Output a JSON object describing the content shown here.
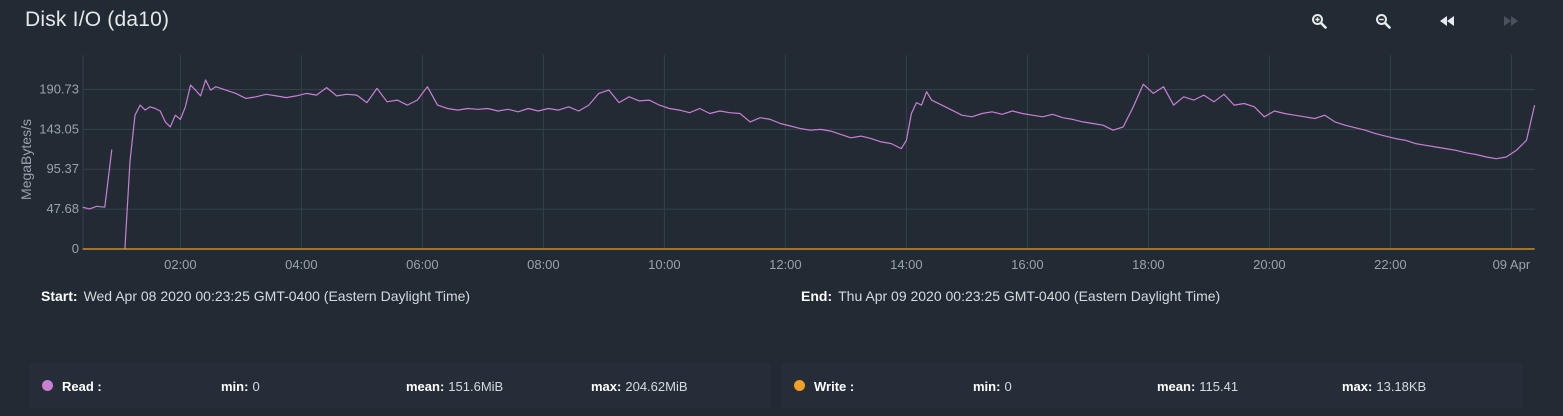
{
  "title": "Disk I/O (da10)",
  "toolbar": {
    "icons": [
      "zoom-in-icon",
      "zoom-out-icon",
      "rewind-icon",
      "fast-forward-icon"
    ]
  },
  "range": {
    "start_label": "Start:",
    "start_value": "Wed Apr 08 2020 00:23:25 GMT-0400 (Eastern Daylight Time)",
    "end_label": "End:",
    "end_value": "Thu Apr 09 2020 00:23:25 GMT-0400 (Eastern Daylight Time)"
  },
  "legend": {
    "read": {
      "label": "Read :",
      "min_label": "min:",
      "min": "0",
      "mean_label": "mean:",
      "mean": "151.6MiB",
      "max_label": "max:",
      "max": "204.62MiB"
    },
    "write": {
      "label": "Write :",
      "min_label": "min:",
      "min": "0",
      "mean_label": "mean:",
      "mean": "115.41",
      "max_label": "max:",
      "max": "13.18KB"
    }
  },
  "colors": {
    "background": "#222a33",
    "grid": "#36404b",
    "read": "#c97fd4",
    "write": "#f0a026",
    "axis_text": "#9aa3ad"
  },
  "chart_data": {
    "type": "line",
    "title": "Disk I/O (da10)",
    "xlabel": "",
    "ylabel": "MegaBytes/s",
    "x_start": "2020-04-08T00:23:25",
    "x_end": "2020-04-09T00:23:25",
    "x_ticks": [
      "02:00",
      "04:00",
      "06:00",
      "08:00",
      "10:00",
      "12:00",
      "14:00",
      "16:00",
      "18:00",
      "20:00",
      "22:00",
      "09 Apr"
    ],
    "y_ticks": [
      "0",
      "47.68",
      "95.37",
      "143.05",
      "190.73"
    ],
    "ylim": [
      0,
      214
    ],
    "grid": true,
    "series": [
      {
        "name": "Read",
        "color": "#c97fd4",
        "points": [
          [
            "00:23",
            50
          ],
          [
            "00:30",
            48
          ],
          [
            "00:37",
            51
          ],
          [
            "00:45",
            50
          ],
          [
            "00:52",
            119
          ],
          [
            "00:56",
            null
          ],
          [
            "01:05",
            0
          ],
          [
            "01:10",
            105
          ],
          [
            "01:15",
            160
          ],
          [
            "01:20",
            172
          ],
          [
            "01:25",
            166
          ],
          [
            "01:30",
            170
          ],
          [
            "01:35",
            168
          ],
          [
            "01:40",
            165
          ],
          [
            "01:45",
            152
          ],
          [
            "01:50",
            146
          ],
          [
            "01:55",
            160
          ],
          [
            "02:00",
            155
          ],
          [
            "02:05",
            170
          ],
          [
            "02:10",
            196
          ],
          [
            "02:15",
            190
          ],
          [
            "02:20",
            183
          ],
          [
            "02:25",
            202
          ],
          [
            "02:30",
            190
          ],
          [
            "02:35",
            194
          ],
          [
            "02:45",
            190
          ],
          [
            "02:55",
            186
          ],
          [
            "03:05",
            180
          ],
          [
            "03:15",
            182
          ],
          [
            "03:25",
            185
          ],
          [
            "03:35",
            183
          ],
          [
            "03:45",
            181
          ],
          [
            "03:55",
            183
          ],
          [
            "04:05",
            186
          ],
          [
            "04:15",
            184
          ],
          [
            "04:25",
            193
          ],
          [
            "04:35",
            183
          ],
          [
            "04:45",
            185
          ],
          [
            "04:55",
            184
          ],
          [
            "05:05",
            175
          ],
          [
            "05:15",
            192
          ],
          [
            "05:25",
            176
          ],
          [
            "05:35",
            178
          ],
          [
            "05:45",
            172
          ],
          [
            "05:55",
            178
          ],
          [
            "06:05",
            194
          ],
          [
            "06:15",
            172
          ],
          [
            "06:25",
            168
          ],
          [
            "06:35",
            166
          ],
          [
            "06:45",
            168
          ],
          [
            "06:55",
            167
          ],
          [
            "07:05",
            168
          ],
          [
            "07:15",
            165
          ],
          [
            "07:25",
            167
          ],
          [
            "07:35",
            164
          ],
          [
            "07:45",
            168
          ],
          [
            "07:55",
            165
          ],
          [
            "08:05",
            168
          ],
          [
            "08:15",
            166
          ],
          [
            "08:25",
            170
          ],
          [
            "08:35",
            165
          ],
          [
            "08:45",
            172
          ],
          [
            "08:55",
            186
          ],
          [
            "09:05",
            190
          ],
          [
            "09:15",
            175
          ],
          [
            "09:25",
            182
          ],
          [
            "09:35",
            177
          ],
          [
            "09:45",
            178
          ],
          [
            "09:55",
            172
          ],
          [
            "10:05",
            168
          ],
          [
            "10:15",
            166
          ],
          [
            "10:25",
            163
          ],
          [
            "10:35",
            168
          ],
          [
            "10:45",
            162
          ],
          [
            "10:55",
            165
          ],
          [
            "11:05",
            163
          ],
          [
            "11:15",
            162
          ],
          [
            "11:25",
            152
          ],
          [
            "11:35",
            157
          ],
          [
            "11:45",
            155
          ],
          [
            "11:55",
            150
          ],
          [
            "12:05",
            147
          ],
          [
            "12:15",
            144
          ],
          [
            "12:25",
            142
          ],
          [
            "12:35",
            143
          ],
          [
            "12:45",
            141
          ],
          [
            "12:55",
            137
          ],
          [
            "13:05",
            133
          ],
          [
            "13:15",
            135
          ],
          [
            "13:25",
            132
          ],
          [
            "13:35",
            128
          ],
          [
            "13:45",
            126
          ],
          [
            "13:55",
            120
          ],
          [
            "14:00",
            130
          ],
          [
            "14:05",
            162
          ],
          [
            "14:10",
            175
          ],
          [
            "14:15",
            172
          ],
          [
            "14:20",
            188
          ],
          [
            "14:25",
            178
          ],
          [
            "14:35",
            172
          ],
          [
            "14:45",
            166
          ],
          [
            "14:55",
            160
          ],
          [
            "15:05",
            158
          ],
          [
            "15:15",
            162
          ],
          [
            "15:25",
            164
          ],
          [
            "15:35",
            161
          ],
          [
            "15:45",
            165
          ],
          [
            "15:55",
            162
          ],
          [
            "16:05",
            160
          ],
          [
            "16:15",
            158
          ],
          [
            "16:25",
            161
          ],
          [
            "16:35",
            157
          ],
          [
            "16:45",
            155
          ],
          [
            "16:55",
            152
          ],
          [
            "17:05",
            150
          ],
          [
            "17:15",
            148
          ],
          [
            "17:25",
            142
          ],
          [
            "17:35",
            146
          ],
          [
            "17:45",
            170
          ],
          [
            "17:55",
            197
          ],
          [
            "18:05",
            186
          ],
          [
            "18:15",
            194
          ],
          [
            "18:25",
            172
          ],
          [
            "18:35",
            182
          ],
          [
            "18:45",
            178
          ],
          [
            "18:55",
            184
          ],
          [
            "19:05",
            176
          ],
          [
            "19:15",
            185
          ],
          [
            "19:25",
            172
          ],
          [
            "19:35",
            174
          ],
          [
            "19:45",
            170
          ],
          [
            "19:55",
            158
          ],
          [
            "20:05",
            165
          ],
          [
            "20:15",
            162
          ],
          [
            "20:25",
            160
          ],
          [
            "20:35",
            158
          ],
          [
            "20:45",
            156
          ],
          [
            "20:55",
            160
          ],
          [
            "21:05",
            152
          ],
          [
            "21:15",
            148
          ],
          [
            "21:25",
            145
          ],
          [
            "21:35",
            142
          ],
          [
            "21:45",
            138
          ],
          [
            "21:55",
            135
          ],
          [
            "22:05",
            132
          ],
          [
            "22:15",
            130
          ],
          [
            "22:25",
            126
          ],
          [
            "22:35",
            124
          ],
          [
            "22:45",
            122
          ],
          [
            "22:55",
            120
          ],
          [
            "23:05",
            118
          ],
          [
            "23:15",
            115
          ],
          [
            "23:25",
            113
          ],
          [
            "23:35",
            110
          ],
          [
            "23:45",
            108
          ],
          [
            "23:55",
            110
          ],
          [
            "24:05",
            118
          ],
          [
            "24:15",
            130
          ],
          [
            "24:23",
            172
          ]
        ]
      },
      {
        "name": "Write",
        "color": "#f0a026",
        "points": [
          [
            "00:23",
            0
          ],
          [
            "24:23",
            0
          ]
        ]
      }
    ]
  }
}
